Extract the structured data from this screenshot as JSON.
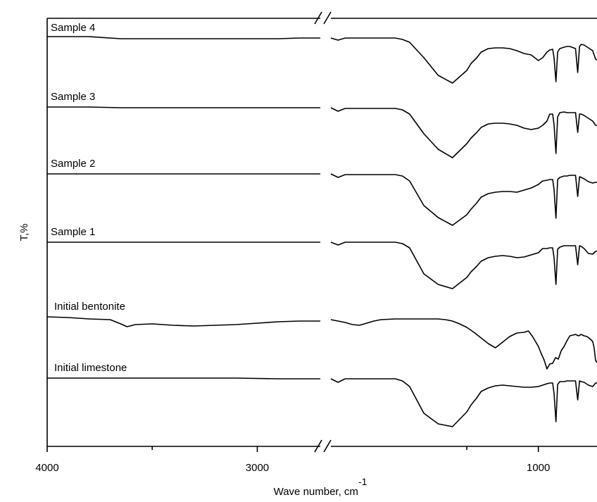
{
  "chart_data": {
    "type": "line",
    "xlabel": "Wave number, cm",
    "xlabel_superscript": "-1",
    "ylabel": "T,%",
    "x_ticks": [
      4000,
      3000,
      1000
    ],
    "x_segments": [
      [
        4000,
        2700
      ],
      [
        2450,
        590
      ]
    ],
    "axis_break": true,
    "legend": "none",
    "grid": false,
    "series": [
      {
        "name": "Sample 4",
        "offset": 0,
        "x": [
          4000,
          3900,
          3800,
          3650,
          3500,
          3300,
          3100,
          2900,
          2800,
          2700,
          2450,
          2400,
          2350,
          2300,
          2200,
          2100,
          2000,
          1950,
          1900,
          1800,
          1700,
          1600,
          1500,
          1470,
          1430,
          1400,
          1350,
          1300,
          1250,
          1200,
          1150,
          1100,
          1050,
          1000,
          970,
          940,
          920,
          900,
          890,
          877,
          865,
          850,
          820,
          800,
          780,
          740,
          725,
          712,
          700,
          680,
          650,
          620,
          600,
          590
        ],
        "y": [
          0,
          0,
          0,
          -3,
          -3,
          -3,
          -3,
          -3,
          -2,
          -2,
          -2,
          -5,
          -2,
          -2,
          -2,
          -2,
          -2,
          -4,
          -8,
          -30,
          -55,
          -66,
          -48,
          -38,
          -30,
          -22,
          -17,
          -16,
          -16,
          -17,
          -20,
          -24,
          -26,
          -34,
          -30,
          -22,
          -19,
          -18,
          -30,
          -64,
          -22,
          -17,
          -15,
          -14,
          -14,
          -17,
          -51,
          -14,
          -11,
          -12,
          -16,
          -20,
          -32,
          -33
        ]
      },
      {
        "name": "Sample 3",
        "offset": 100,
        "x": [
          4000,
          3900,
          3800,
          3650,
          3500,
          3300,
          3100,
          2900,
          2800,
          2700,
          2450,
          2400,
          2350,
          2300,
          2200,
          2100,
          2000,
          1950,
          1900,
          1800,
          1700,
          1600,
          1500,
          1470,
          1430,
          1400,
          1350,
          1300,
          1250,
          1200,
          1150,
          1100,
          1050,
          1000,
          970,
          940,
          920,
          900,
          890,
          877,
          865,
          850,
          820,
          800,
          780,
          740,
          725,
          712,
          700,
          680,
          650,
          620,
          600,
          590
        ],
        "y": [
          0,
          0,
          0,
          -1,
          -1,
          -1,
          -1,
          -1,
          -1,
          -1,
          -1,
          -6,
          -2,
          -2,
          -2,
          -2,
          -2,
          -4,
          -10,
          -38,
          -60,
          -72,
          -52,
          -44,
          -36,
          -29,
          -24,
          -23,
          -23,
          -24,
          -26,
          -30,
          -32,
          -30,
          -26,
          -20,
          -10,
          -10,
          -25,
          -66,
          -14,
          -8,
          -7,
          -8,
          -8,
          -8,
          -36,
          -10,
          -10,
          -12,
          -16,
          -20,
          -26,
          -26
        ]
      },
      {
        "name": "Sample 2",
        "offset": 195,
        "x": [
          4000,
          3900,
          3800,
          3650,
          3500,
          3300,
          3100,
          2900,
          2800,
          2700,
          2450,
          2400,
          2350,
          2300,
          2200,
          2100,
          2000,
          1950,
          1900,
          1800,
          1700,
          1600,
          1500,
          1470,
          1430,
          1400,
          1350,
          1300,
          1250,
          1200,
          1150,
          1100,
          1050,
          1000,
          970,
          940,
          920,
          900,
          890,
          877,
          865,
          850,
          820,
          800,
          780,
          740,
          725,
          712,
          700,
          680,
          650,
          620,
          600,
          590
        ],
        "y": [
          0,
          0,
          0,
          0,
          0,
          0,
          0,
          0,
          0,
          0,
          0,
          -5,
          -1,
          -1,
          -1,
          -1,
          -1,
          -3,
          -10,
          -45,
          -62,
          -73,
          -58,
          -50,
          -41,
          -33,
          -28,
          -26,
          -25,
          -25,
          -26,
          -23,
          -20,
          -15,
          -10,
          -9,
          -8,
          -8,
          -22,
          -63,
          -8,
          -5,
          -3,
          -3,
          -2,
          -2,
          -32,
          -4,
          -5,
          -7,
          -11,
          -13,
          -12,
          -12
        ]
      },
      {
        "name": "Sample 1",
        "offset": 292,
        "x": [
          4000,
          3900,
          3800,
          3650,
          3500,
          3300,
          3100,
          2900,
          2800,
          2700,
          2450,
          2400,
          2350,
          2300,
          2200,
          2100,
          2000,
          1950,
          1900,
          1800,
          1700,
          1600,
          1500,
          1470,
          1430,
          1400,
          1350,
          1300,
          1250,
          1200,
          1150,
          1100,
          1050,
          1000,
          970,
          940,
          920,
          900,
          890,
          877,
          865,
          850,
          820,
          800,
          780,
          740,
          725,
          712,
          700,
          680,
          650,
          620,
          600,
          590
        ],
        "y": [
          0,
          0,
          0,
          0,
          0,
          0,
          0,
          0,
          0,
          0,
          0,
          -4,
          0,
          0,
          0,
          0,
          0,
          -2,
          -8,
          -45,
          -60,
          -66,
          -50,
          -42,
          -34,
          -27,
          -22,
          -20,
          -19,
          -20,
          -22,
          -21,
          -18,
          -15,
          -9,
          -9,
          -8,
          -8,
          -22,
          -60,
          -10,
          -7,
          -5,
          -5,
          -5,
          -5,
          -32,
          -5,
          -6,
          -9,
          -16,
          -17,
          -13,
          -13
        ]
      },
      {
        "name": "Initial bentonite",
        "offset": 398,
        "x": [
          4000,
          3900,
          3800,
          3700,
          3650,
          3620,
          3580,
          3500,
          3400,
          3300,
          3200,
          3100,
          3000,
          2900,
          2800,
          2700,
          2450,
          2400,
          2350,
          2300,
          2250,
          2200,
          2150,
          2100,
          2000,
          1900,
          1800,
          1700,
          1650,
          1600,
          1550,
          1500,
          1450,
          1400,
          1350,
          1300,
          1250,
          1200,
          1150,
          1100,
          1070,
          1040,
          1000,
          980,
          960,
          940,
          920,
          900,
          880,
          860,
          840,
          820,
          800,
          780,
          760,
          740,
          720,
          700,
          680,
          660,
          640,
          620,
          610,
          600,
          590
        ],
        "y": [
          0,
          -1,
          -3,
          -4,
          -10,
          -14,
          -11,
          -10,
          -12,
          -13,
          -12,
          -11,
          -9,
          -7,
          -6,
          -6,
          -4,
          -6,
          -8,
          -11,
          -12,
          -9,
          -6,
          -4,
          -3,
          -3,
          -3,
          -3,
          -4,
          -6,
          -10,
          -15,
          -22,
          -30,
          -38,
          -44,
          -36,
          -28,
          -23,
          -22,
          -20,
          -28,
          -42,
          -52,
          -61,
          -74,
          -67,
          -66,
          -58,
          -60,
          -48,
          -42,
          -34,
          -27,
          -26,
          -25,
          -27,
          -25,
          -27,
          -28,
          -31,
          -35,
          -44,
          -62,
          -65
        ]
      },
      {
        "name": "Initial limestone",
        "offset": 485,
        "x": [
          4000,
          3900,
          3800,
          3650,
          3500,
          3300,
          3100,
          2900,
          2800,
          2700,
          2450,
          2400,
          2350,
          2300,
          2200,
          2100,
          2000,
          1950,
          1900,
          1800,
          1700,
          1600,
          1500,
          1470,
          1430,
          1400,
          1350,
          1300,
          1250,
          1200,
          1150,
          1100,
          1050,
          1000,
          970,
          940,
          920,
          900,
          890,
          877,
          865,
          850,
          820,
          800,
          780,
          740,
          725,
          712,
          700,
          680,
          650,
          620,
          600,
          590
        ],
        "y": [
          0,
          0,
          0,
          0,
          0,
          0,
          0,
          -1,
          -1,
          -1,
          -1,
          -6,
          -1,
          -1,
          -1,
          -1,
          -1,
          -4,
          -12,
          -50,
          -65,
          -69,
          -48,
          -38,
          -28,
          -19,
          -14,
          -11,
          -10,
          -11,
          -12,
          -13,
          -13,
          -12,
          -10,
          -8,
          -7,
          -7,
          -22,
          -62,
          -9,
          -5,
          -5,
          -4,
          -4,
          -4,
          -31,
          -4,
          -5,
          -6,
          -10,
          -12,
          -7,
          -7
        ]
      }
    ]
  }
}
